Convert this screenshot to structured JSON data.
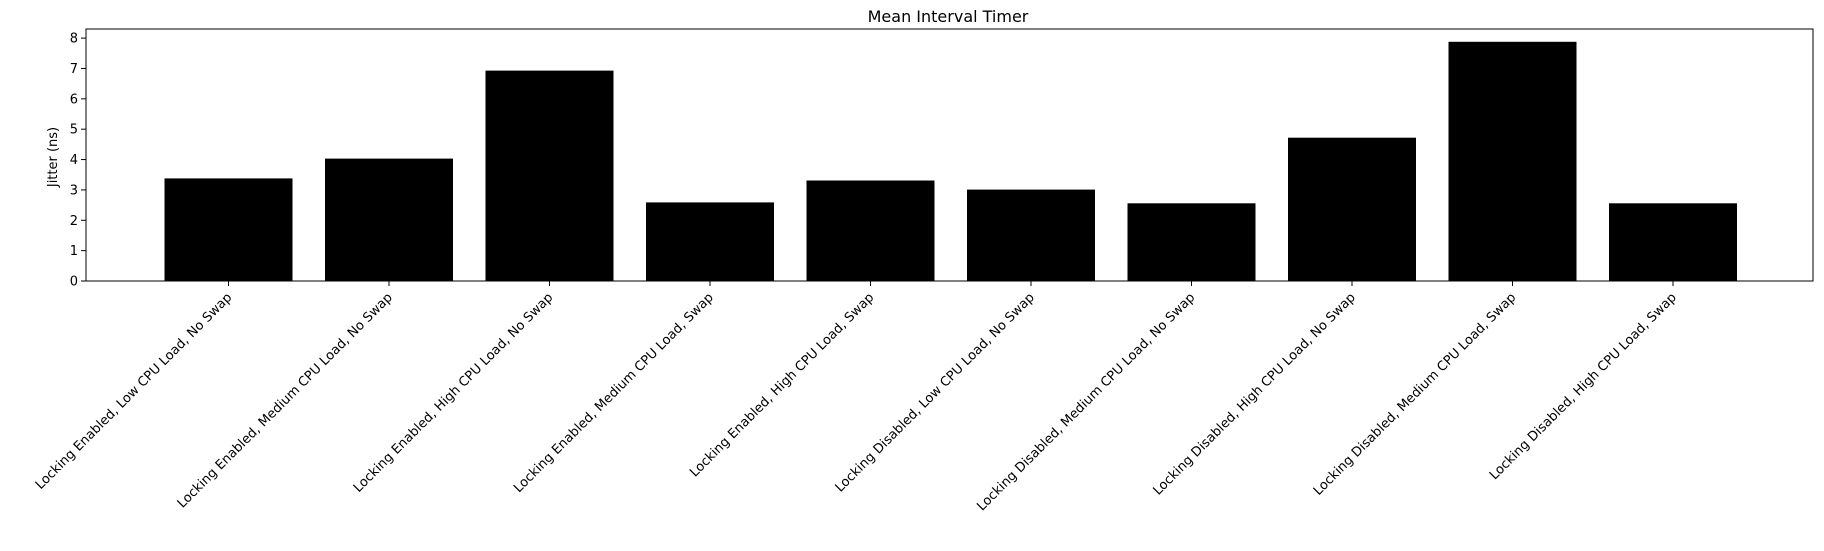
{
  "chart_data": {
    "type": "bar",
    "title": "Mean Interval Timer",
    "xlabel": "",
    "ylabel": "Jitter (ns)",
    "categories": [
      "Locking Enabled, Low CPU Load, No Swap",
      "Locking Enabled, Medium CPU Load, No Swap",
      "Locking Enabled, High CPU Load, No Swap",
      "Locking Enabled, Medium CPU Load, Swap",
      "Locking Enabled, High CPU Load, Swap",
      "Locking Disabled, Low CPU Load, No Swap",
      "Locking Disabled, Medium CPU Load, No Swap",
      "Locking Disabled, High CPU Load, No Swap",
      "Locking Disabled, Medium CPU Load, Swap",
      "Locking Disabled, High CPU Load, Swap"
    ],
    "values": [
      3.38,
      4.03,
      6.93,
      2.59,
      3.31,
      3.01,
      2.56,
      4.72,
      7.88,
      2.56
    ],
    "ylim": [
      0,
      8.3
    ],
    "yticks": [
      0,
      1,
      2,
      3,
      4,
      5,
      6,
      7,
      8
    ],
    "bar_color": "#000000",
    "grid": false,
    "legend": "none"
  }
}
